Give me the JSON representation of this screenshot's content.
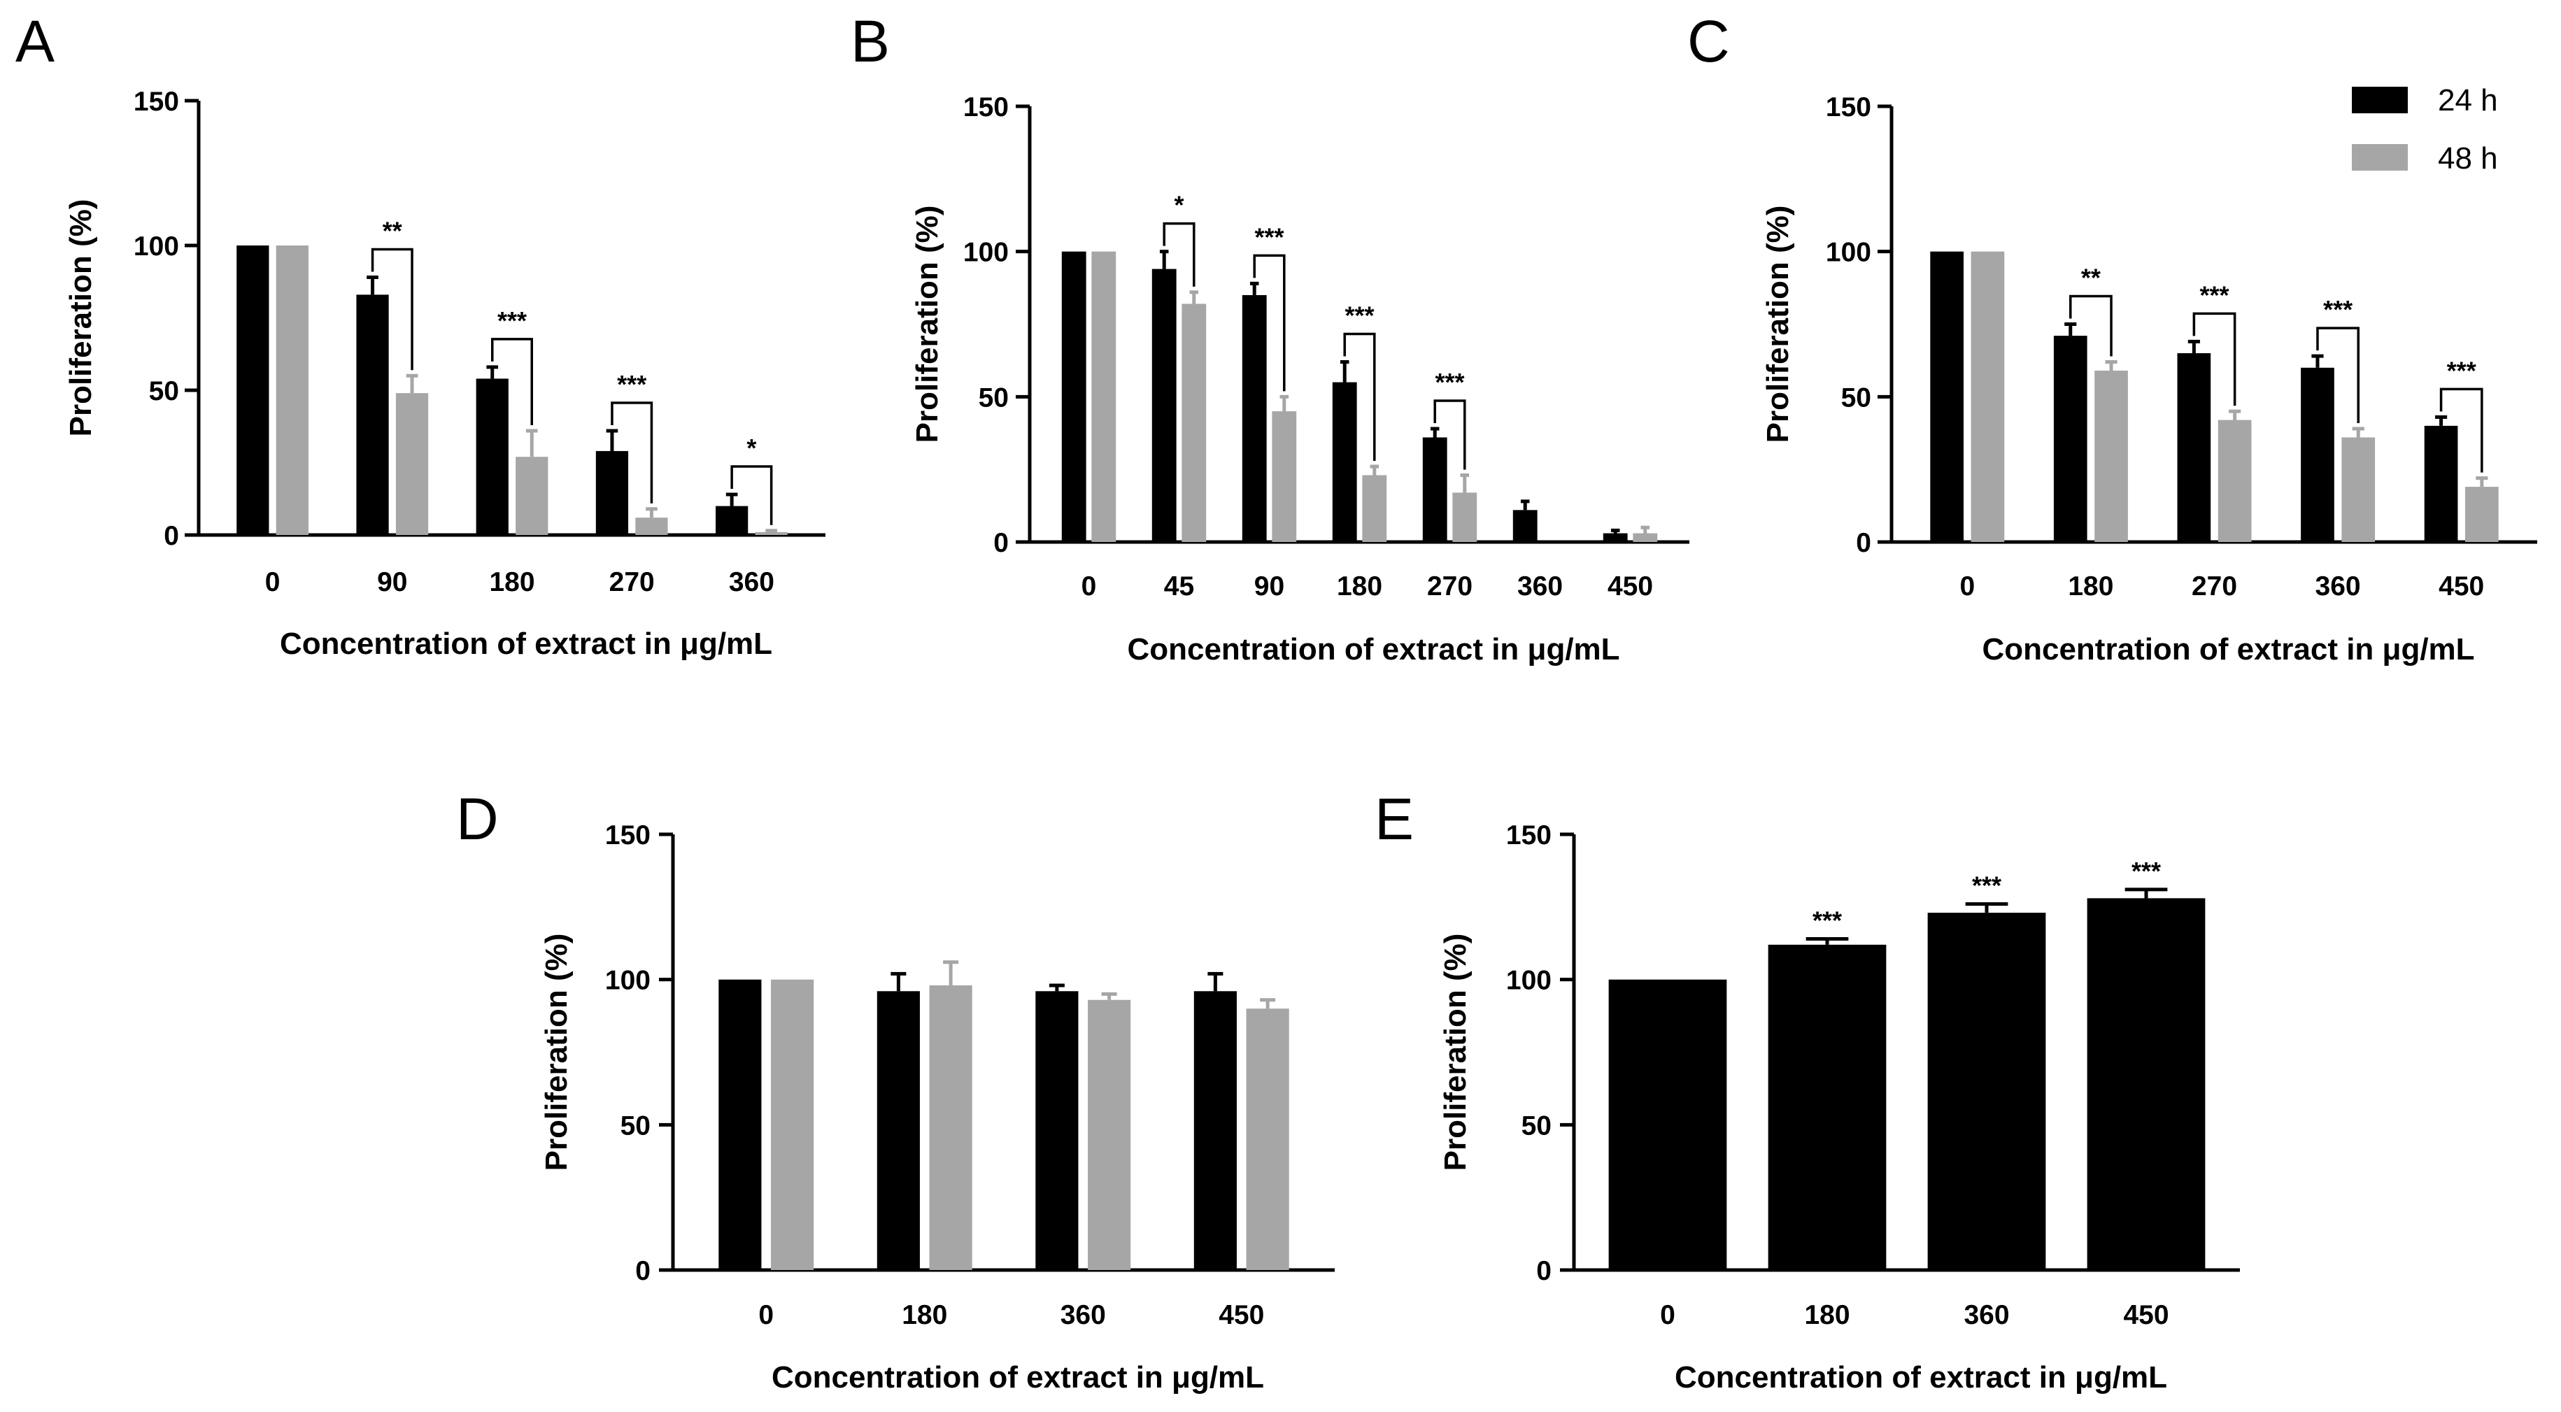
{
  "colors": {
    "h24": "#000000",
    "h48": "#a6a6a6",
    "axis": "#000000"
  },
  "legend": [
    {
      "label": "24 h",
      "color": "#000000"
    },
    {
      "label": "48 h",
      "color": "#a6a6a6"
    }
  ],
  "chart_data": [
    {
      "panel": "A",
      "type": "bar",
      "categories": [
        "0",
        "90",
        "180",
        "270",
        "360"
      ],
      "series": [
        {
          "name": "24 h",
          "values": [
            100,
            83,
            54,
            29,
            10
          ],
          "errors": [
            0,
            6,
            4,
            7,
            4
          ]
        },
        {
          "name": "48 h",
          "values": [
            100,
            49,
            27,
            6,
            1
          ],
          "errors": [
            0,
            6,
            9,
            3,
            0.5
          ]
        }
      ],
      "significance": [
        "",
        "**",
        "***",
        "***",
        "*"
      ],
      "xlabel": "Concentration of extract in μg/mL",
      "ylabel": "Proliferation (%)",
      "ylim": [
        0,
        150
      ],
      "yticks": [
        0,
        50,
        100,
        150
      ]
    },
    {
      "panel": "B",
      "type": "bar",
      "categories": [
        "0",
        "45",
        "90",
        "180",
        "270",
        "360",
        "450"
      ],
      "series": [
        {
          "name": "24 h",
          "values": [
            100,
            94,
            85,
            55,
            36,
            11,
            3
          ],
          "errors": [
            0,
            6,
            4,
            7,
            3,
            3,
            1
          ]
        },
        {
          "name": "48 h",
          "values": [
            100,
            82,
            45,
            23,
            17,
            0,
            3
          ],
          "errors": [
            0,
            4,
            5,
            3,
            6,
            0,
            2
          ]
        }
      ],
      "significance": [
        "",
        "*",
        "***",
        "***",
        "***",
        "",
        ""
      ],
      "xlabel": "Concentration of extract in μg/mL",
      "ylabel": "Proliferation (%)",
      "ylim": [
        0,
        150
      ],
      "yticks": [
        0,
        50,
        100,
        150
      ]
    },
    {
      "panel": "C",
      "type": "bar",
      "categories": [
        "0",
        "180",
        "270",
        "360",
        "450"
      ],
      "series": [
        {
          "name": "24 h",
          "values": [
            100,
            71,
            65,
            60,
            40
          ],
          "errors": [
            0,
            4,
            4,
            4,
            3
          ]
        },
        {
          "name": "48 h",
          "values": [
            100,
            59,
            42,
            36,
            19
          ],
          "errors": [
            0,
            3,
            3,
            3,
            3
          ]
        }
      ],
      "significance": [
        "",
        "**",
        "***",
        "***",
        "***"
      ],
      "xlabel": "Concentration of extract in μg/mL",
      "ylabel": "Proliferation (%)",
      "ylim": [
        0,
        150
      ],
      "yticks": [
        0,
        50,
        100,
        150
      ]
    },
    {
      "panel": "D",
      "type": "bar",
      "categories": [
        "0",
        "180",
        "360",
        "450"
      ],
      "series": [
        {
          "name": "24 h",
          "values": [
            100,
            96,
            96,
            96
          ],
          "errors": [
            0,
            6,
            2,
            6
          ]
        },
        {
          "name": "48 h",
          "values": [
            100,
            98,
            93,
            90
          ],
          "errors": [
            0,
            8,
            2,
            3
          ]
        }
      ],
      "significance": [
        "",
        "",
        "",
        ""
      ],
      "xlabel": "Concentration of extract in μg/mL",
      "ylabel": "Proliferation (%)",
      "ylim": [
        0,
        150
      ],
      "yticks": [
        0,
        50,
        100,
        150
      ]
    },
    {
      "panel": "E",
      "type": "bar",
      "categories": [
        "0",
        "180",
        "360",
        "450"
      ],
      "series": [
        {
          "name": "24 h",
          "values": [
            100,
            112,
            123,
            128
          ],
          "errors": [
            0,
            2,
            3,
            3
          ]
        }
      ],
      "significance": [
        "",
        "***",
        "***",
        "***"
      ],
      "xlabel": "Concentration of extract in μg/mL",
      "ylabel": "Proliferation (%)",
      "ylim": [
        0,
        150
      ],
      "yticks": [
        0,
        50,
        100,
        150
      ]
    }
  ]
}
